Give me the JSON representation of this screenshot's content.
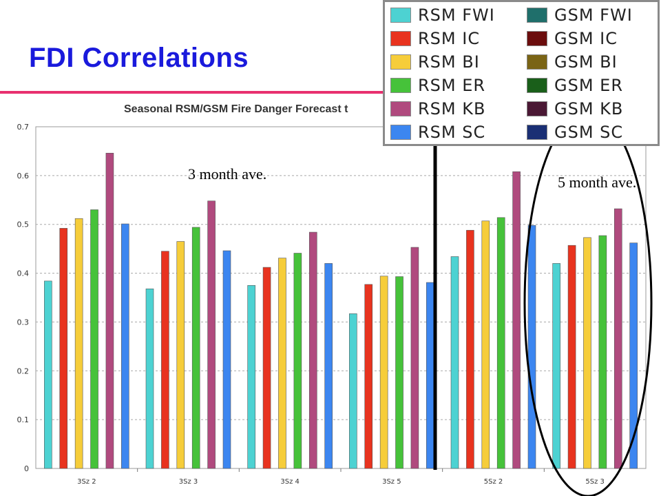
{
  "slide": {
    "title": "FDI Correlations"
  },
  "annotations": {
    "three_month": "3 month ave.",
    "five_month": "5 month ave."
  },
  "legend": [
    {
      "label": "RSM FWI",
      "color": "#4dd2d2"
    },
    {
      "label": "GSM FWI",
      "color": "#1f6f6b"
    },
    {
      "label": "RSM IC",
      "color": "#e8331f"
    },
    {
      "label": "GSM IC",
      "color": "#6b0d0d"
    },
    {
      "label": "RSM BI",
      "color": "#f6cd3a"
    },
    {
      "label": "GSM BI",
      "color": "#7a6415"
    },
    {
      "label": "RSM ER",
      "color": "#46c23a"
    },
    {
      "label": "GSM ER",
      "color": "#1a5f1a"
    },
    {
      "label": "RSM KB",
      "color": "#b04a7e"
    },
    {
      "label": "GSM KB",
      "color": "#4a1834"
    },
    {
      "label": "RSM SC",
      "color": "#3c86f0"
    },
    {
      "label": "GSM SC",
      "color": "#1a2f74"
    }
  ],
  "chart_data": {
    "type": "bar",
    "title": "Seasonal RSM/GSM Fire Danger Forecast t",
    "categories": [
      "3Sz 2",
      "3Sz 3",
      "3Sz 4",
      "3Sz 5",
      "5Sz 2",
      "5Sz 3"
    ],
    "ylim": [
      0,
      0.7
    ],
    "yticks": [
      "0",
      "0.1",
      "0.2",
      "0.3",
      "0.4",
      "0.5",
      "0.6",
      "0.7"
    ],
    "grid": true,
    "series": [
      {
        "name": "RSM FWI",
        "color": "#4dd2d2",
        "values": [
          0.384,
          0.368,
          0.375,
          0.317,
          0.434,
          0.42
        ]
      },
      {
        "name": "RSM IC",
        "color": "#e8331f",
        "values": [
          0.492,
          0.445,
          0.412,
          0.377,
          0.488,
          0.457
        ]
      },
      {
        "name": "RSM BI",
        "color": "#f6cd3a",
        "values": [
          0.512,
          0.465,
          0.431,
          0.394,
          0.507,
          0.473
        ]
      },
      {
        "name": "RSM ER",
        "color": "#46c23a",
        "values": [
          0.53,
          0.494,
          0.441,
          0.393,
          0.514,
          0.477
        ]
      },
      {
        "name": "RSM KB",
        "color": "#b04a7e",
        "values": [
          0.646,
          0.548,
          0.484,
          0.453,
          0.608,
          0.532
        ]
      },
      {
        "name": "RSM SC",
        "color": "#3c86f0",
        "values": [
          0.501,
          0.446,
          0.42,
          0.381,
          0.498,
          0.462
        ]
      }
    ]
  }
}
